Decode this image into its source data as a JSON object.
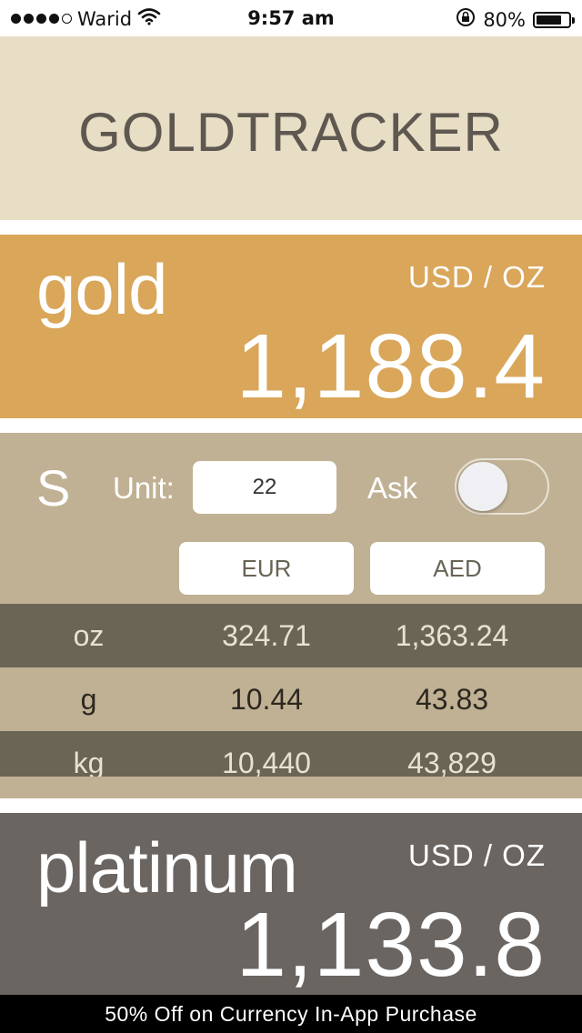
{
  "status_bar": {
    "carrier": "Warid",
    "time": "9:57 am",
    "battery_percent": "80%",
    "signal_bars_filled": 4,
    "signal_bars_total": 5,
    "battery_level": 0.8,
    "icons": [
      "signal-dots-icon",
      "wifi-icon",
      "rotation-lock-icon",
      "battery-icon"
    ]
  },
  "header": {
    "title": "GOLDTRACKER"
  },
  "gold": {
    "name": "gold",
    "unit": "USD / OZ",
    "price": "1,188.4",
    "color": "#d9a65a"
  },
  "converter": {
    "symbol": "S",
    "unit_label": "Unit:",
    "unit_value": "22",
    "ask_label": "Ask",
    "ask_toggle_on": false,
    "currencies": [
      "EUR",
      "AED"
    ],
    "rows": [
      {
        "unit": "oz",
        "eur": "324.71",
        "aed": "1,363.24"
      },
      {
        "unit": "g",
        "eur": "10.44",
        "aed": "43.83"
      },
      {
        "unit": "kg",
        "eur": "10,440",
        "aed": "43,829"
      }
    ]
  },
  "platinum": {
    "name": "platinum",
    "unit": "USD / OZ",
    "price": "1,133.8",
    "color": "#6b6561"
  },
  "footer": {
    "text": "50% Off on Currency In-App Purchase"
  }
}
